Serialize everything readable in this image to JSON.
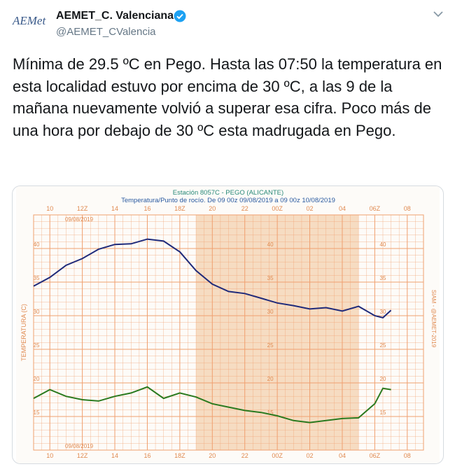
{
  "tweet": {
    "logo": "AEMet",
    "name": "AEMET_C. Valenciana",
    "handle": "@AEMET_CValencia",
    "text": "Mínima de 29.5 ºC en Pego. Hasta las 07:50 la temperatura en esta localidad estuvo por encima de 30 ºC, a las 9 de la mañana nuevamente volvió a superar esa cifra. Poco más de una hora por debajo de 30 ºC esta madrugada en Pego."
  },
  "chart_data": {
    "type": "line",
    "title": "Estación 8057C - PEGO (ALICANTE)",
    "subtitle": "Temperatura/Punto de rocío. De 09 00z 09/08/2019 a 09 00z 10/08/2019",
    "ylabel": "TEMPERATURA (C)",
    "right_label": "SIAM - @AEMET-2019",
    "date_label": "09/08/2019",
    "x": [
      9,
      10,
      11,
      12,
      13,
      14,
      15,
      16,
      17,
      18,
      19,
      20,
      21,
      22,
      23,
      24,
      25,
      26,
      27,
      28,
      29,
      30,
      30.5,
      31
    ],
    "series": [
      {
        "color": "#1f2a7a",
        "values": [
          34.4,
          35.7,
          37.5,
          38.5,
          39.9,
          40.6,
          40.7,
          41.4,
          41.1,
          39.5,
          36.7,
          34.7,
          33.6,
          33.3,
          32.6,
          31.9,
          31.5,
          31.0,
          31.2,
          30.7,
          31.4,
          30.0,
          29.7,
          30.8
        ]
      },
      {
        "color": "#2a7a1f",
        "values": [
          17.7,
          19.0,
          18.0,
          17.5,
          17.3,
          18.0,
          18.5,
          19.4,
          17.7,
          18.5,
          17.9,
          16.9,
          16.4,
          15.9,
          15.6,
          15.1,
          14.4,
          14.1,
          14.4,
          14.7,
          14.8,
          16.9,
          19.2,
          19.0
        ]
      }
    ],
    "xlim": [
      9,
      33
    ],
    "xticks": [
      10,
      {
        "value": 12,
        "label": "12Z"
      },
      14,
      16,
      {
        "value": 18,
        "label": "18Z"
      },
      20,
      22,
      {
        "value": 24,
        "label": "00Z"
      },
      {
        "value": 26,
        "label": "02"
      },
      {
        "value": 28,
        "label": "04"
      },
      {
        "value": 30,
        "label": "06Z"
      },
      {
        "value": 32,
        "label": "08"
      }
    ],
    "ylim": [
      10,
      45
    ],
    "yticks": [
      15,
      20,
      25,
      30,
      35,
      40
    ],
    "shaded_range": [
      19,
      29
    ],
    "shade_color": "#f6dcc2",
    "grid_color": "#f0a070",
    "grid": true
  }
}
